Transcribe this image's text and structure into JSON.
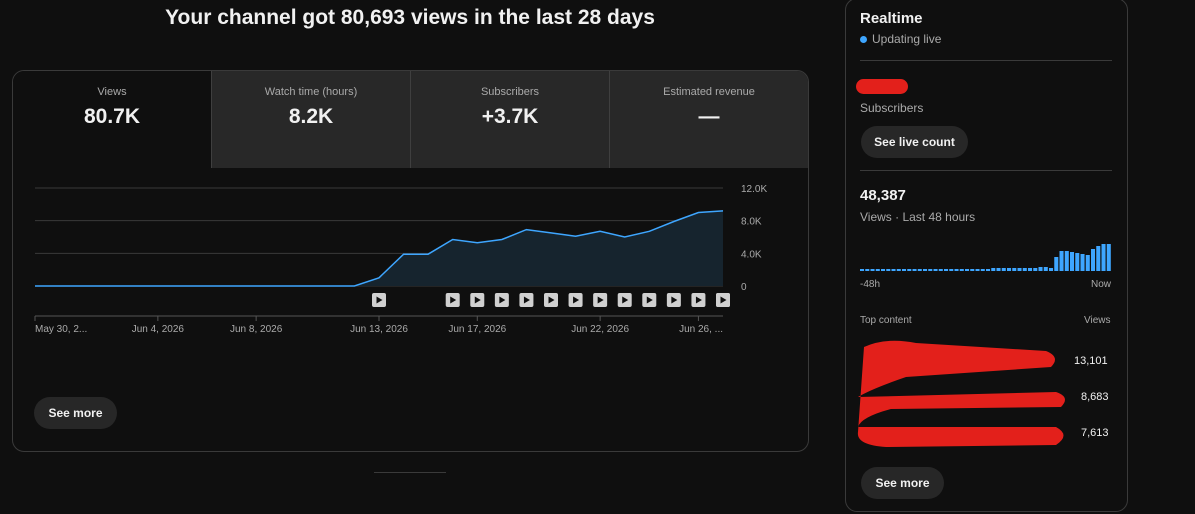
{
  "headline": "Your channel got 80,693 views in the last 28 days",
  "tabs": [
    {
      "label": "Views",
      "value": "80.7K"
    },
    {
      "label": "Watch time (hours)",
      "value": "8.2K"
    },
    {
      "label": "Subscribers",
      "value": "+3.7K"
    },
    {
      "label": "Estimated revenue",
      "value": "—"
    }
  ],
  "main_see_more": "See more",
  "chart_data": {
    "type": "area",
    "title": "",
    "xlabel": "",
    "ylabel": "",
    "ylim": [
      0,
      12000
    ],
    "yticks": [
      "0",
      "4.0K",
      "8.0K",
      "12.0K"
    ],
    "xtick_labels": [
      "May 30, 2...",
      "Jun 4, 2026",
      "Jun 8, 2026",
      "Jun 13, 2026",
      "Jun 17, 2026",
      "Jun 22, 2026",
      "Jun 26, ..."
    ],
    "x": [
      "May 30",
      "May 31",
      "Jun 1",
      "Jun 2",
      "Jun 3",
      "Jun 4",
      "Jun 5",
      "Jun 6",
      "Jun 7",
      "Jun 8",
      "Jun 9",
      "Jun 10",
      "Jun 11",
      "Jun 12",
      "Jun 13",
      "Jun 14",
      "Jun 15",
      "Jun 16",
      "Jun 17",
      "Jun 18",
      "Jun 19",
      "Jun 20",
      "Jun 21",
      "Jun 22",
      "Jun 23",
      "Jun 24",
      "Jun 25",
      "Jun 26",
      "Jun 27"
    ],
    "series": [
      {
        "values": [
          0,
          0,
          0,
          0,
          0,
          0,
          0,
          0,
          0,
          0,
          0,
          0,
          0,
          0,
          1000,
          3900,
          3900,
          5700,
          5300,
          5700,
          6900,
          6500,
          6100,
          6700,
          6000,
          6700,
          7900,
          9000,
          9200
        ]
      }
    ],
    "line_color": "#3ea6ff",
    "grid": true,
    "markers_x": [
      "Jun 13",
      "Jun 16",
      "Jun 17",
      "Jun 18",
      "Jun 19",
      "Jun 20",
      "Jun 21",
      "Jun 22",
      "Jun 23",
      "Jun 24",
      "Jun 25",
      "Jun 26",
      "Jun 27",
      "Jun 28"
    ]
  },
  "realtime": {
    "title": "Realtime",
    "status": "Updating live",
    "subscribers_label": "Subscribers",
    "see_live_count": "See live count",
    "views_count": "48,387",
    "views_label": "Views · Last 48 hours",
    "axis_left": "-48h",
    "axis_right": "Now",
    "mini_bars": [
      2,
      2,
      2,
      2,
      2,
      2,
      2,
      2,
      2,
      2,
      2,
      2,
      2,
      2,
      2,
      2,
      2,
      2,
      2,
      2,
      2,
      2,
      2,
      2,
      2,
      3,
      3,
      3,
      3,
      3,
      3,
      3,
      3,
      3,
      4,
      4,
      3,
      3,
      3,
      3,
      3,
      3,
      3,
      2,
      2,
      2,
      2,
      2,
      2,
      2,
      2,
      3,
      3,
      3,
      3,
      3,
      3,
      3,
      3,
      3,
      3,
      3,
      3,
      3,
      3,
      3,
      3,
      3,
      3,
      3,
      3,
      3,
      3,
      3,
      3,
      3,
      3,
      3,
      3,
      3,
      3,
      3,
      3,
      3,
      3,
      3,
      3,
      3,
      3,
      3,
      3,
      3,
      3,
      3,
      3,
      3,
      3,
      3,
      3,
      3,
      3,
      3,
      3,
      3,
      3,
      3,
      3,
      3,
      3,
      3,
      3,
      3,
      3,
      3,
      3,
      3,
      3,
      3,
      3,
      3,
      3,
      3,
      3,
      3,
      3,
      3,
      3,
      3,
      3,
      3,
      3,
      3,
      3,
      3,
      3,
      3,
      3,
      3,
      3,
      3,
      3,
      3,
      3,
      3,
      3,
      3,
      3,
      3,
      3,
      3,
      3,
      3,
      3,
      3,
      3,
      3,
      3,
      3,
      3,
      3,
      3,
      3,
      3,
      3,
      3,
      3,
      3,
      3,
      3,
      3,
      3,
      3,
      3,
      3,
      3,
      3,
      3,
      3,
      3,
      3,
      3,
      3,
      3,
      3,
      3,
      3,
      3,
      3,
      3,
      3,
      3,
      3,
      3,
      3,
      3,
      3,
      3,
      3,
      3,
      3
    ],
    "mini_bars_tail": [
      14,
      20,
      20,
      19,
      18,
      17,
      16,
      22,
      25,
      27,
      27
    ],
    "top_content_label": "Top content",
    "top_content_col": "Views",
    "top_content_values": [
      "13,101",
      "8,683",
      "7,613"
    ],
    "see_more": "See more"
  }
}
